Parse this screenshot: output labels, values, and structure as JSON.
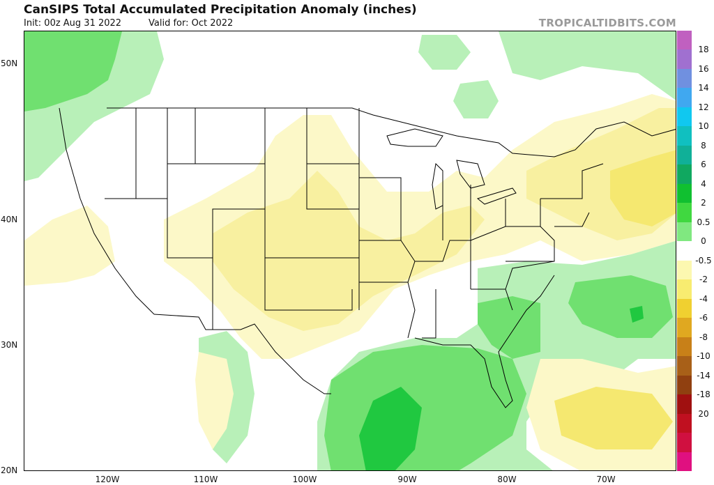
{
  "header": {
    "title": "CanSIPS Total Accumulated Precipitation Anomaly (inches)",
    "init": "Init: 00z Aug 31 2022",
    "valid": "Valid for: Oct 2022",
    "brand": "TROPICALTIDBITS.COM"
  },
  "axes": {
    "lat_labels": [
      "50N",
      "40N",
      "30N",
      "20N"
    ],
    "lon_labels": [
      "120W",
      "110W",
      "100W",
      "90W",
      "80W",
      "70W"
    ]
  },
  "colorbar": {
    "labels": [
      "18",
      "16",
      "14",
      "12",
      "10",
      "8",
      "6",
      "4",
      "2",
      "0.5",
      "0",
      "-0.5",
      "-2",
      "-4",
      "-6",
      "-8",
      "-10",
      "-14",
      "-18",
      "20"
    ],
    "colors": [
      "#c060c0",
      "#a070d0",
      "#7090e0",
      "#40a8f0",
      "#10c8f0",
      "#10c0c0",
      "#10b098",
      "#10a860",
      "#10c030",
      "#40d840",
      "#80e880",
      "#ffffff",
      "#fcf8b0",
      "#f8ec70",
      "#f0d030",
      "#e0a820",
      "#c88018",
      "#a86018",
      "#904010",
      "#a01010",
      "#c01020",
      "#d01040",
      "#e01080"
    ]
  },
  "colors": {
    "wet_light": "#b8f0b8",
    "wet_mid": "#70e070",
    "wet_strong": "#20c840",
    "dry_light": "#fcf8c8",
    "dry_mid": "#f8f0a0",
    "dry_strong": "#f5e870"
  }
}
